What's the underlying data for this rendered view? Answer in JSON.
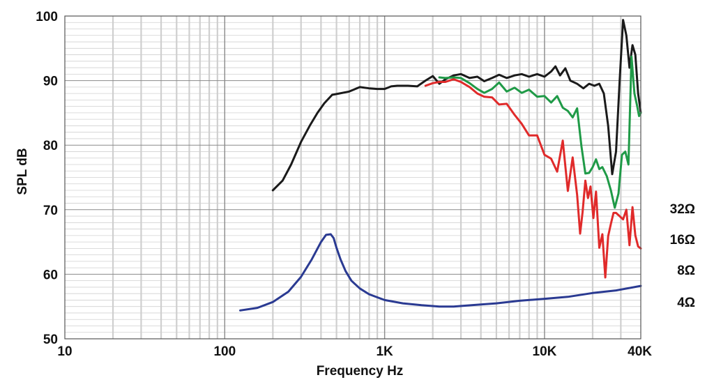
{
  "chart_data": {
    "type": "line",
    "xlabel": "Frequency Hz",
    "ylabel": "SPL dB",
    "xscale": "log",
    "xlim": [
      10,
      40000
    ],
    "ylim": [
      50,
      100
    ],
    "grid": true,
    "x_ticks": [
      {
        "value": 10,
        "label": "10"
      },
      {
        "value": 100,
        "label": "100"
      },
      {
        "value": 1000,
        "label": "1K"
      },
      {
        "value": 10000,
        "label": "10K"
      },
      {
        "value": 40000,
        "label": "40K"
      }
    ],
    "y_ticks": [
      {
        "value": 50,
        "label": "50"
      },
      {
        "value": 60,
        "label": "60"
      },
      {
        "value": 70,
        "label": "70"
      },
      {
        "value": 80,
        "label": "80"
      },
      {
        "value": 90,
        "label": "90"
      },
      {
        "value": 100,
        "label": "100"
      }
    ],
    "impedance_labels": [
      "32Ω",
      "16Ω",
      "8Ω",
      "4Ω"
    ],
    "series": [
      {
        "color": "#1a1a1a",
        "x": [
          200,
          230,
          260,
          300,
          340,
          380,
          420,
          470,
          520,
          600,
          700,
          800,
          900,
          1000,
          1100,
          1200,
          1400,
          1600,
          1800,
          2000,
          2200,
          2400,
          2700,
          3000,
          3400,
          3800,
          4200,
          4700,
          5200,
          5800,
          6500,
          7200,
          8000,
          9000,
          10000,
          11000,
          11700,
          12500,
          13500,
          14500,
          16000,
          17500,
          19000,
          20500,
          22000,
          23500,
          25000,
          26500,
          28000,
          29500,
          31000,
          32500,
          34000,
          35500,
          37000,
          38500,
          40000
        ],
        "y": [
          73,
          74.5,
          77,
          80.5,
          83,
          85,
          86.5,
          87.8,
          88,
          88.3,
          89,
          88.8,
          88.7,
          88.7,
          89.1,
          89.2,
          89.2,
          89.1,
          90,
          90.7,
          89.5,
          90.2,
          90.8,
          91,
          90.4,
          90.6,
          89.9,
          90.4,
          90.9,
          90.4,
          90.8,
          91,
          90.6,
          91,
          90.6,
          91.4,
          92.2,
          90.8,
          91.9,
          90,
          89.5,
          88.8,
          89.5,
          89.2,
          89.5,
          88,
          83,
          75.5,
          79,
          90,
          99.4,
          97,
          92,
          95.5,
          94,
          88,
          85
        ]
      },
      {
        "color": "#1f9a47",
        "x": [
          2200,
          2400,
          2700,
          3000,
          3400,
          3800,
          4200,
          4700,
          5200,
          5800,
          6500,
          7200,
          8000,
          9000,
          10000,
          11000,
          12000,
          13000,
          14000,
          15000,
          16000,
          17000,
          18000,
          19000,
          20000,
          21000,
          22000,
          23000,
          24500,
          26000,
          27500,
          29000,
          30500,
          32000,
          33500,
          35000,
          36500,
          38000,
          39000,
          40000
        ],
        "y": [
          90.5,
          90.4,
          90.5,
          90.4,
          89.6,
          88.7,
          88.1,
          88.7,
          89.7,
          88.3,
          88.9,
          88.1,
          88.6,
          87.5,
          87.6,
          86.6,
          87.6,
          85.8,
          85.3,
          84.3,
          85.7,
          79.9,
          75.6,
          75.7,
          76.6,
          77.8,
          76.3,
          76.6,
          75.2,
          73,
          70.3,
          72.5,
          78.5,
          79,
          77,
          93.7,
          88,
          86,
          84.5,
          85
        ]
      },
      {
        "color": "#e02a2a",
        "x": [
          1800,
          2000,
          2200,
          2400,
          2700,
          3000,
          3400,
          3800,
          4200,
          4700,
          5200,
          5800,
          6500,
          7200,
          8000,
          9000,
          10000,
          11000,
          12000,
          13000,
          14000,
          15000,
          16000,
          16700,
          17300,
          18000,
          18700,
          19400,
          20200,
          21000,
          22000,
          23000,
          24000,
          25000,
          26000,
          27000,
          28000,
          29500,
          31000,
          32500,
          34000,
          35500,
          37000,
          38500,
          40000
        ],
        "y": [
          89.2,
          89.6,
          89.8,
          89.8,
          90.2,
          89.8,
          89,
          88,
          87.5,
          87.4,
          86.3,
          86.4,
          84.7,
          83.3,
          81.5,
          81.5,
          78.5,
          77.9,
          75.9,
          80.7,
          72.9,
          78.1,
          72.3,
          66.3,
          69.6,
          74.5,
          71.8,
          73.6,
          68.7,
          72.8,
          64.1,
          66.2,
          59.5,
          65.9,
          67.8,
          69.5,
          69.5,
          69,
          68.5,
          70,
          64.5,
          70.4,
          66,
          64.3,
          64
        ]
      },
      {
        "color": "#2a3a92",
        "x": [
          125,
          160,
          200,
          250,
          300,
          350,
          400,
          430,
          460,
          480,
          500,
          530,
          570,
          620,
          700,
          800,
          1000,
          1300,
          1700,
          2200,
          2700,
          3500,
          5000,
          7000,
          10000,
          14000,
          20000,
          28000,
          40000
        ],
        "y": [
          54.4,
          54.8,
          55.7,
          57.3,
          59.6,
          62.3,
          65,
          66.1,
          66.2,
          65.6,
          64.1,
          62.3,
          60.5,
          59,
          57.8,
          56.9,
          56,
          55.5,
          55.2,
          55,
          55,
          55.2,
          55.5,
          55.9,
          56.2,
          56.5,
          57.1,
          57.5,
          58.2
        ]
      }
    ]
  }
}
